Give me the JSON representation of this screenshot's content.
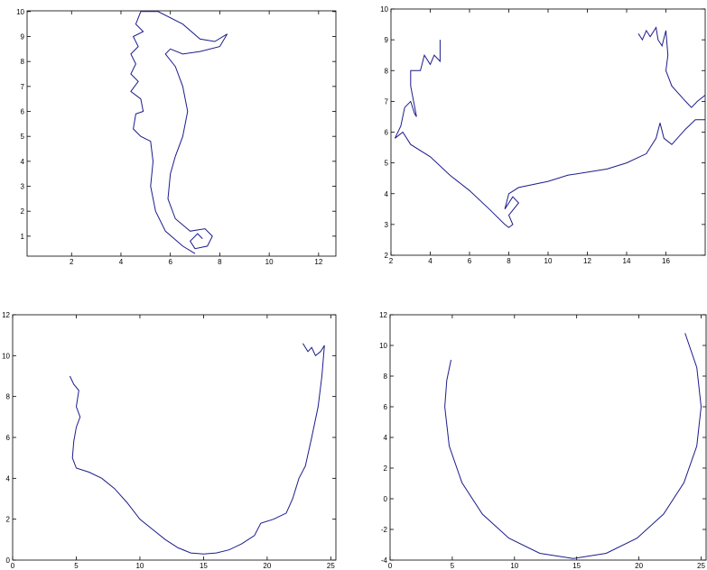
{
  "chart_data": [
    {
      "type": "line",
      "color": "#1c1c8c",
      "xlim": [
        0.2,
        12.7
      ],
      "ylim": [
        0.2,
        10.03
      ],
      "xticks": [
        2,
        4,
        6,
        8,
        10,
        12
      ],
      "yticks": [
        1,
        2,
        3,
        4,
        5,
        6,
        7,
        8,
        9,
        10
      ],
      "x": [
        7.3,
        7.1,
        6.8,
        7.0,
        7.5,
        7.7,
        7.4,
        6.8,
        6.2,
        5.9,
        6.0,
        6.2,
        6.5,
        6.7,
        6.5,
        6.2,
        5.8,
        6.0,
        6.5,
        7.2,
        8.0,
        8.3,
        7.8,
        7.2,
        6.5,
        5.5,
        4.8,
        4.6,
        4.9,
        4.5,
        4.7,
        4.4,
        4.6,
        4.4,
        4.7,
        4.4,
        4.8,
        4.9,
        4.6,
        4.5,
        4.8,
        5.2,
        5.3,
        5.2,
        5.4,
        5.8,
        6.5,
        7.0
      ],
      "y": [
        0.9,
        1.1,
        0.8,
        0.5,
        0.6,
        1.0,
        1.3,
        1.2,
        1.7,
        2.5,
        3.5,
        4.2,
        5.0,
        6.0,
        7.0,
        7.8,
        8.3,
        8.5,
        8.3,
        8.4,
        8.6,
        9.1,
        8.8,
        8.9,
        9.5,
        10.0,
        10.0,
        9.5,
        9.2,
        9.0,
        8.6,
        8.3,
        7.9,
        7.5,
        7.2,
        6.8,
        6.5,
        6.0,
        5.9,
        5.3,
        5.0,
        4.8,
        4.0,
        3.0,
        2.0,
        1.2,
        0.6,
        0.3
      ]
    },
    {
      "type": "line",
      "color": "#1c1c8c",
      "xlim": [
        2,
        18
      ],
      "ylim": [
        2,
        10
      ],
      "xticks": [
        2,
        4,
        6,
        8,
        10,
        12,
        14,
        16
      ],
      "yticks": [
        2,
        3,
        4,
        5,
        6,
        7,
        8,
        9,
        10
      ],
      "x": [
        4.5,
        4.5,
        4.2,
        4.0,
        3.7,
        3.5,
        3.0,
        3.0,
        3.3,
        3.2,
        3.0,
        2.7,
        2.5,
        2.2,
        2.6,
        3.0,
        4.0,
        5.0,
        6.0,
        7.0,
        7.8,
        8.0,
        8.2,
        8.0,
        8.5,
        8.2,
        7.8,
        8.0,
        8.5,
        10.0,
        11.0,
        12.0,
        13.0,
        14.0,
        15.0,
        15.5,
        15.7,
        15.9,
        16.3,
        17.0,
        17.5,
        18.0,
        null,
        14.6,
        14.8,
        15.0,
        15.2,
        15.5,
        15.6,
        15.8,
        16.0,
        16.1,
        16.0,
        16.3,
        17.0,
        17.3,
        17.6,
        18.0
      ],
      "y": [
        9.0,
        8.3,
        8.5,
        8.2,
        8.5,
        8.0,
        8.0,
        7.5,
        6.5,
        6.6,
        7.0,
        6.8,
        6.2,
        5.8,
        6.0,
        5.6,
        5.2,
        4.6,
        4.1,
        3.5,
        3.0,
        2.9,
        3.0,
        3.3,
        3.7,
        3.9,
        3.5,
        4.0,
        4.2,
        4.4,
        4.6,
        4.7,
        4.8,
        5.0,
        5.3,
        5.8,
        6.3,
        5.8,
        5.6,
        6.1,
        6.4,
        6.4,
        null,
        9.2,
        9.0,
        9.3,
        9.1,
        9.4,
        9.0,
        8.8,
        9.3,
        8.5,
        8.0,
        7.5,
        7.0,
        6.8,
        7.0,
        7.2
      ]
    },
    {
      "type": "line",
      "color": "#1c1c8c",
      "xlim": [
        0,
        25.4
      ],
      "ylim": [
        0,
        12
      ],
      "xticks": [
        0,
        5,
        10,
        15,
        20,
        25
      ],
      "yticks": [
        0,
        2,
        4,
        6,
        8,
        10,
        12
      ],
      "x": [
        4.5,
        4.8,
        5.2,
        5.0,
        5.3,
        5.0,
        4.8,
        4.7,
        5.0,
        6.0,
        7.0,
        8.0,
        9.0,
        10.0,
        11.0,
        12.0,
        13.0,
        14.0,
        15.0,
        16.0,
        17.0,
        18.0,
        19.0,
        19.5,
        20.5,
        21.5,
        22.0,
        22.5,
        23.0,
        23.5,
        24.0,
        24.3,
        24.5,
        24.2,
        23.8,
        23.5,
        23.2,
        22.8
      ],
      "y": [
        9.0,
        8.6,
        8.3,
        7.5,
        7.0,
        6.5,
        5.8,
        5.0,
        4.5,
        4.3,
        4.0,
        3.5,
        2.8,
        2.0,
        1.5,
        1.0,
        0.6,
        0.35,
        0.3,
        0.35,
        0.5,
        0.8,
        1.2,
        1.8,
        2.0,
        2.3,
        3.0,
        4.0,
        4.6,
        6.0,
        7.5,
        9.0,
        10.5,
        10.2,
        10.0,
        10.4,
        10.2,
        10.6
      ]
    },
    {
      "type": "line",
      "color": "#1c1c8c",
      "xlim": [
        0,
        25.4
      ],
      "ylim": [
        -4,
        12
      ],
      "xticks": [
        0,
        5,
        10,
        15,
        20,
        25
      ],
      "yticks": [
        -4,
        -2,
        0,
        2,
        4,
        6,
        8,
        10,
        12
      ],
      "x": [
        4.9,
        4.56,
        4.4,
        4.75,
        5.78,
        7.42,
        9.55,
        12.03,
        14.7,
        17.37,
        19.85,
        21.98,
        23.62,
        24.65,
        25.0,
        24.65,
        23.71
      ],
      "y": [
        9.06,
        7.72,
        6.0,
        3.44,
        1.05,
        -1.0,
        -2.57,
        -3.56,
        -3.9,
        -3.56,
        -2.57,
        -1.0,
        1.05,
        3.44,
        6.0,
        8.56,
        10.8
      ]
    }
  ]
}
